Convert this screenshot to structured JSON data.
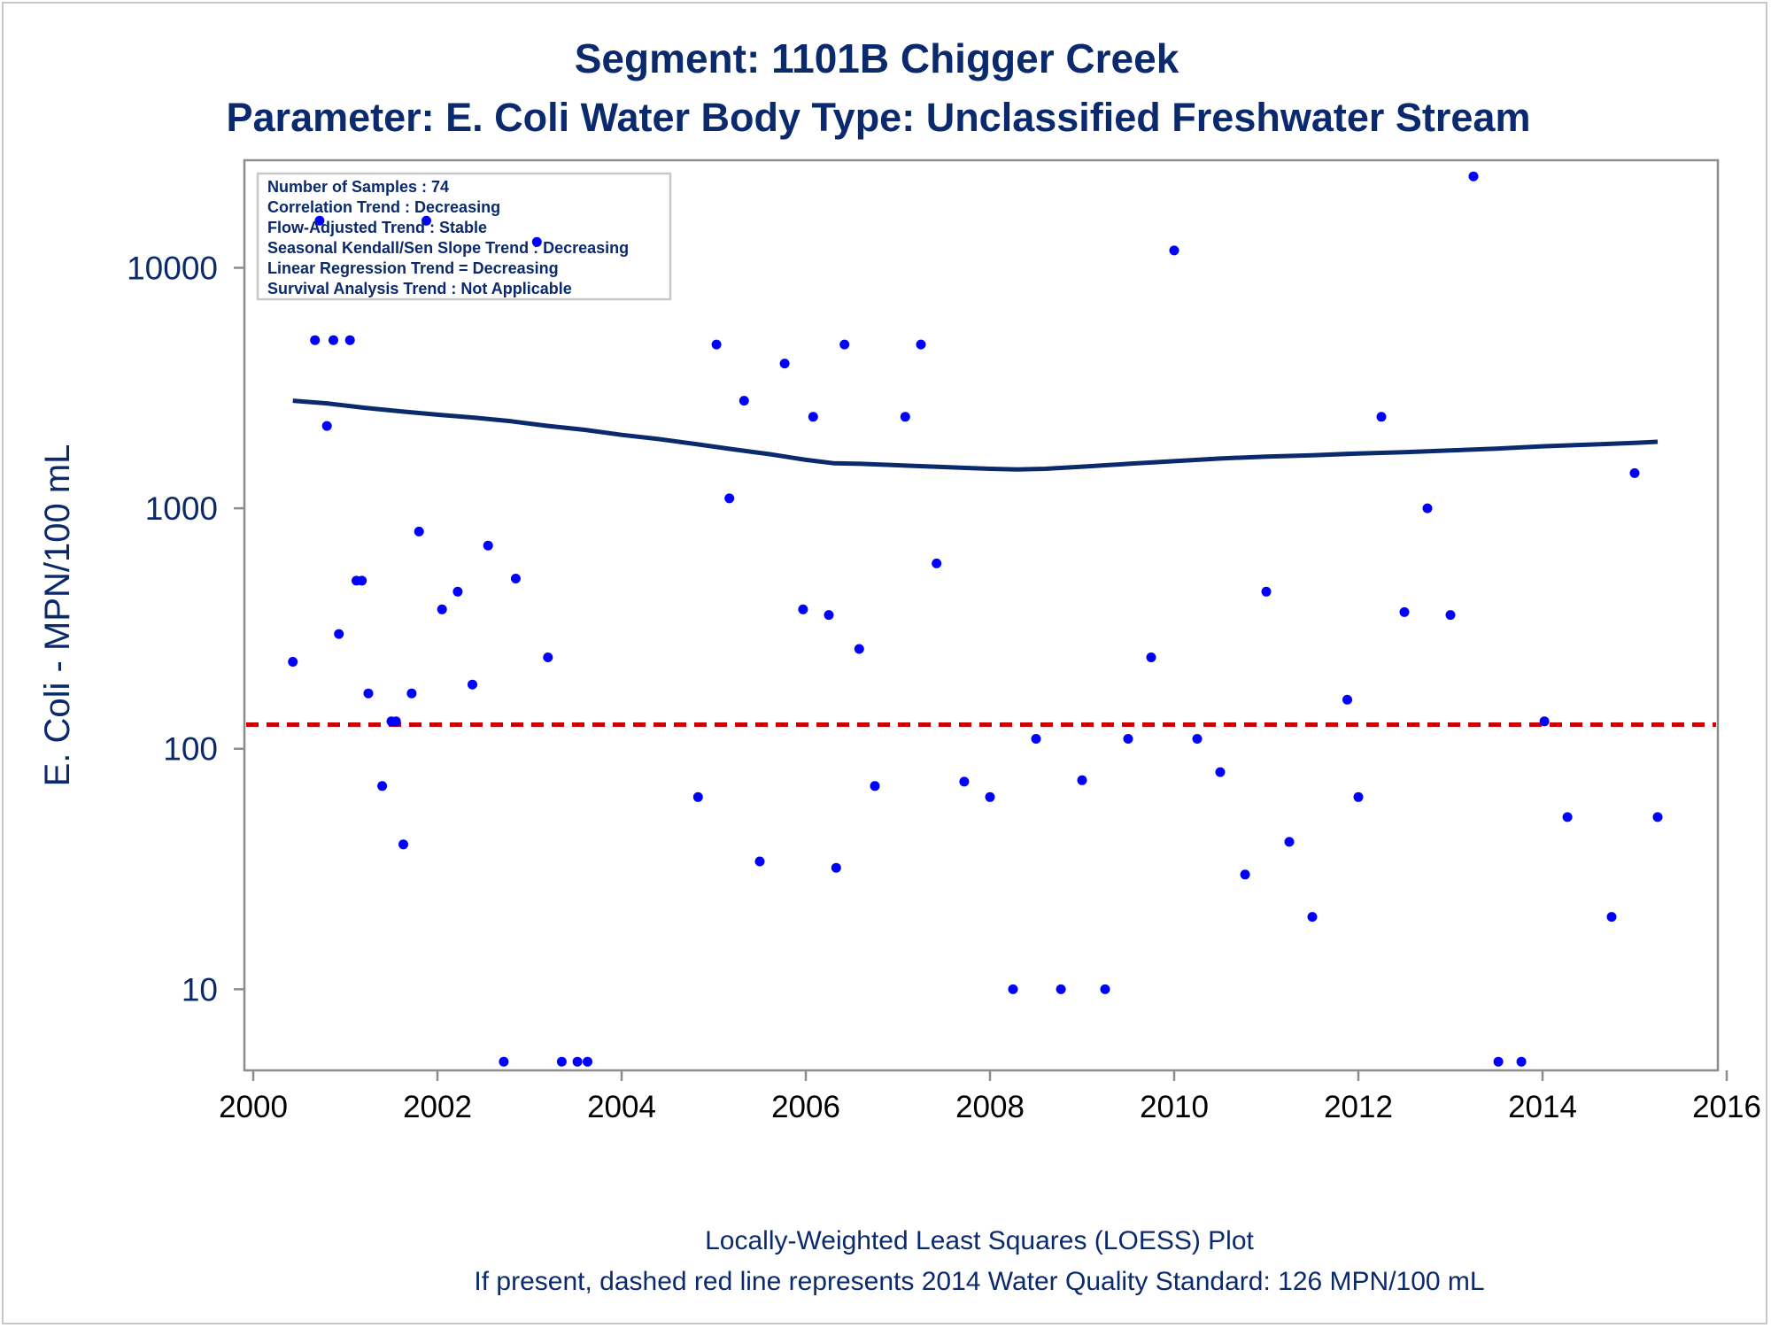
{
  "chart_data": {
    "type": "scatter",
    "title": "Segment: 1101B  Chigger Creek",
    "subtitle": "Parameter: E. Coli   Water Body Type: Unclassified Freshwater Stream",
    "xlabel": "",
    "ylabel": "E. Coli - MPN/100 mL",
    "xlim": [
      2000,
      2016
    ],
    "ylim": [
      4.6,
      28000
    ],
    "y_scale": "log",
    "x_ticks": [
      "2000",
      "2002",
      "2004",
      "2006",
      "2008",
      "2010",
      "2012",
      "2014",
      "2016"
    ],
    "y_ticks": [
      "10",
      "100",
      "1000",
      "10000"
    ],
    "grid": false,
    "stats_box": {
      "placement": "top-left",
      "lines": [
        "Number of Samples : 74",
        "Correlation Trend : Decreasing",
        "Flow-Adjusted Trend : Stable",
        "Seasonal Kendall/Sen Slope Trend : Decreasing",
        "Linear Regression Trend = Decreasing",
        "Survival Analysis Trend : Not Applicable"
      ]
    },
    "standard_line": {
      "value": 126,
      "color": "#cc0000",
      "style": "dashed"
    },
    "footnotes": [
      "Locally-Weighted Least Squares (LOESS) Plot",
      "If present, dashed red line represents 2014 Water Quality Standard: 126 MPN/100 mL"
    ],
    "colors": {
      "points": "#0000ff",
      "loess": "#0b2a6e",
      "text": "#0b2a6e",
      "axis": "#888888"
    },
    "series": [
      {
        "type": "scatter",
        "points": [
          [
            2000.43,
            230
          ],
          [
            2000.67,
            5000
          ],
          [
            2000.72,
            15700
          ],
          [
            2000.8,
            2200
          ],
          [
            2000.87,
            5000
          ],
          [
            2000.93,
            300
          ],
          [
            2001.05,
            5000
          ],
          [
            2001.12,
            500
          ],
          [
            2001.18,
            500
          ],
          [
            2001.25,
            170
          ],
          [
            2001.4,
            70
          ],
          [
            2001.5,
            130
          ],
          [
            2001.55,
            130
          ],
          [
            2001.63,
            40
          ],
          [
            2001.72,
            170
          ],
          [
            2001.8,
            800
          ],
          [
            2001.88,
            15700
          ],
          [
            2002.05,
            380
          ],
          [
            2002.22,
            450
          ],
          [
            2002.38,
            185
          ],
          [
            2002.55,
            700
          ],
          [
            2002.72,
            5
          ],
          [
            2002.85,
            510
          ],
          [
            2003.08,
            12800
          ],
          [
            2003.2,
            240
          ],
          [
            2003.35,
            5
          ],
          [
            2003.52,
            5
          ],
          [
            2003.63,
            5
          ],
          [
            2004.83,
            63
          ],
          [
            2005.03,
            4800
          ],
          [
            2005.17,
            1100
          ],
          [
            2005.33,
            2800
          ],
          [
            2005.5,
            34
          ],
          [
            2005.77,
            4000
          ],
          [
            2005.97,
            380
          ],
          [
            2006.08,
            2400
          ],
          [
            2006.25,
            360
          ],
          [
            2006.33,
            32
          ],
          [
            2006.42,
            4800
          ],
          [
            2006.58,
            260
          ],
          [
            2006.75,
            70
          ],
          [
            2007.08,
            2400
          ],
          [
            2007.25,
            4800
          ],
          [
            2007.42,
            590
          ],
          [
            2007.72,
            73
          ],
          [
            2008.0,
            63
          ],
          [
            2008.25,
            10
          ],
          [
            2008.5,
            110
          ],
          [
            2008.77,
            10
          ],
          [
            2009.0,
            74
          ],
          [
            2009.25,
            10
          ],
          [
            2009.5,
            110
          ],
          [
            2009.75,
            240
          ],
          [
            2010.0,
            11800
          ],
          [
            2010.25,
            110
          ],
          [
            2010.5,
            80
          ],
          [
            2010.77,
            30
          ],
          [
            2011.0,
            450
          ],
          [
            2011.25,
            41
          ],
          [
            2011.5,
            20
          ],
          [
            2011.88,
            160
          ],
          [
            2012.0,
            63
          ],
          [
            2012.25,
            2400
          ],
          [
            2012.5,
            370
          ],
          [
            2012.75,
            1000
          ],
          [
            2013.0,
            360
          ],
          [
            2013.25,
            24000
          ],
          [
            2013.52,
            5
          ],
          [
            2013.77,
            5
          ],
          [
            2014.02,
            130
          ],
          [
            2014.27,
            52
          ],
          [
            2014.75,
            20
          ],
          [
            2015.0,
            1400
          ],
          [
            2015.25,
            52
          ]
        ]
      },
      {
        "type": "line",
        "points": [
          [
            2000.43,
            2800
          ],
          [
            2000.8,
            2730
          ],
          [
            2001.2,
            2620
          ],
          [
            2001.6,
            2530
          ],
          [
            2002.0,
            2450
          ],
          [
            2002.4,
            2380
          ],
          [
            2002.8,
            2300
          ],
          [
            2003.2,
            2200
          ],
          [
            2003.6,
            2120
          ],
          [
            2004.0,
            2020
          ],
          [
            2004.4,
            1940
          ],
          [
            2004.8,
            1850
          ],
          [
            2005.2,
            1760
          ],
          [
            2005.6,
            1680
          ],
          [
            2006.0,
            1590
          ],
          [
            2006.3,
            1540
          ],
          [
            2006.6,
            1530
          ],
          [
            2007.0,
            1510
          ],
          [
            2007.4,
            1490
          ],
          [
            2007.8,
            1470
          ],
          [
            2008.0,
            1460
          ],
          [
            2008.3,
            1450
          ],
          [
            2008.6,
            1460
          ],
          [
            2009.0,
            1490
          ],
          [
            2009.5,
            1530
          ],
          [
            2010.0,
            1570
          ],
          [
            2010.5,
            1610
          ],
          [
            2011.0,
            1640
          ],
          [
            2011.5,
            1660
          ],
          [
            2012.0,
            1690
          ],
          [
            2012.5,
            1710
          ],
          [
            2013.0,
            1740
          ],
          [
            2013.5,
            1770
          ],
          [
            2014.0,
            1810
          ],
          [
            2014.5,
            1840
          ],
          [
            2015.0,
            1870
          ],
          [
            2015.25,
            1890
          ]
        ]
      }
    ]
  }
}
